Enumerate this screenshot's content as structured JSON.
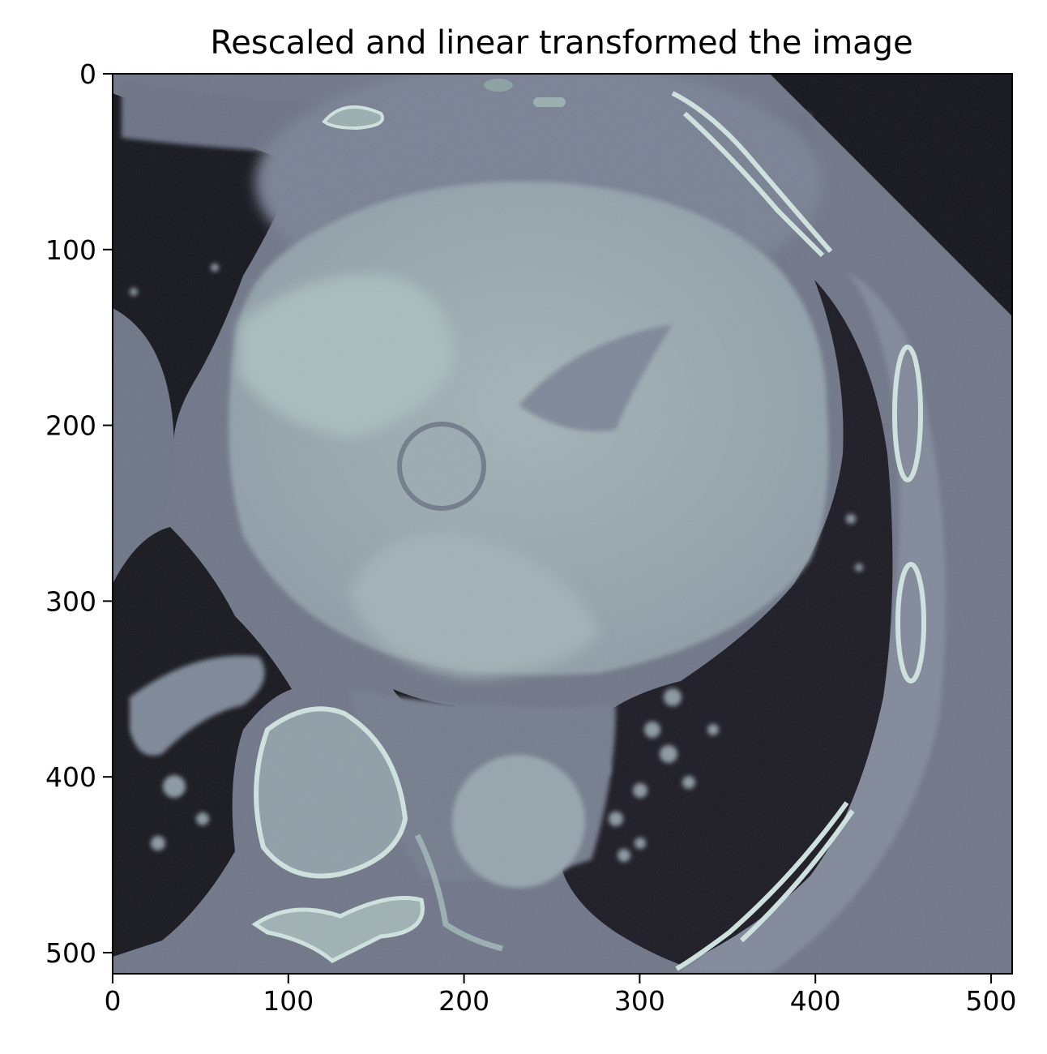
{
  "title": "Rescaled and linear transformed the image",
  "colormap": "bone",
  "chart_data": {
    "type": "image",
    "title": "Rescaled and linear transformed the image",
    "xlim": [
      0,
      512
    ],
    "ylim": [
      512,
      0
    ],
    "xticks": [
      0,
      100,
      200,
      300,
      400,
      500
    ],
    "yticks": [
      0,
      100,
      200,
      300,
      400,
      500
    ]
  }
}
